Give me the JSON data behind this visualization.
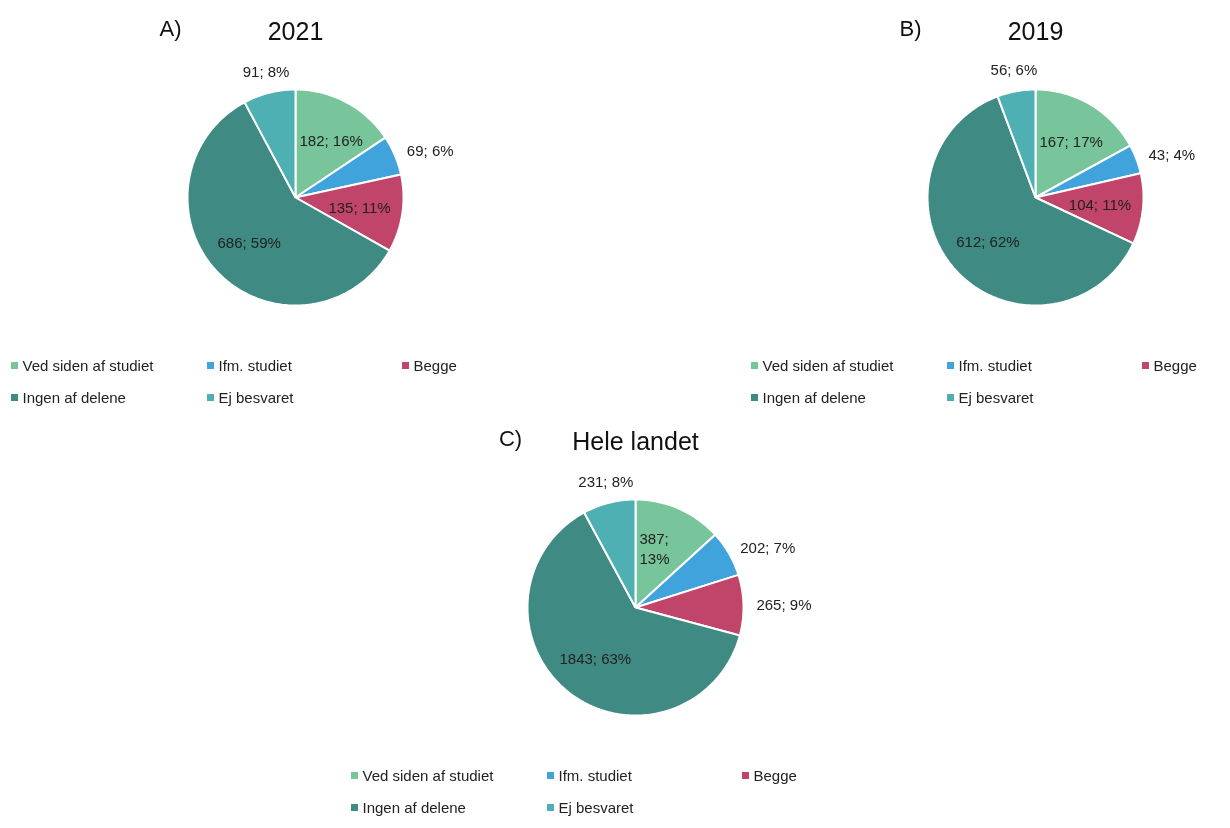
{
  "chart_data": [
    {
      "type": "pie",
      "title": "2021",
      "annotations": [
        "A)"
      ],
      "categories": [
        "Ved siden af studiet",
        "Ifm. studiet",
        "Begge",
        "Ingen af delene",
        "Ej besvaret"
      ],
      "values": [
        182,
        69,
        135,
        686,
        91
      ],
      "value_labels": [
        "182; 16%",
        "69; 6%",
        "135; 11%",
        "686; 59%",
        "91; 8%"
      ],
      "colors": [
        "#78c49b",
        "#41a3db",
        "#c1446a",
        "#3f8a82",
        "#4fb0b3"
      ],
      "legend": "bottom"
    },
    {
      "type": "pie",
      "title": "2019",
      "annotations": [
        "B)"
      ],
      "categories": [
        "Ved siden af studiet",
        "Ifm. studiet",
        "Begge",
        "Ingen af delene",
        "Ej besvaret"
      ],
      "values": [
        167,
        43,
        104,
        612,
        56
      ],
      "value_labels": [
        "167; 17%",
        "43; 4%",
        "104; 11%",
        "612; 62%",
        "56; 6%"
      ],
      "colors": [
        "#78c49b",
        "#41a3db",
        "#c1446a",
        "#3f8a82",
        "#4fb0b3"
      ],
      "legend": "bottom"
    },
    {
      "type": "pie",
      "title": "Hele landet",
      "annotations": [
        "C)"
      ],
      "categories": [
        "Ved siden af studiet",
        "Ifm. studiet",
        "Begge",
        "Ingen af delene",
        "Ej besvaret"
      ],
      "values": [
        387,
        202,
        265,
        1843,
        231
      ],
      "value_labels": [
        "387; 13%",
        "202; 7%",
        "265; 9%",
        "1843; 63%",
        "231; 8%"
      ],
      "colors": [
        "#78c49b",
        "#41a3db",
        "#c1446a",
        "#3f8a82",
        "#4fb0b3"
      ],
      "legend": "bottom"
    }
  ]
}
